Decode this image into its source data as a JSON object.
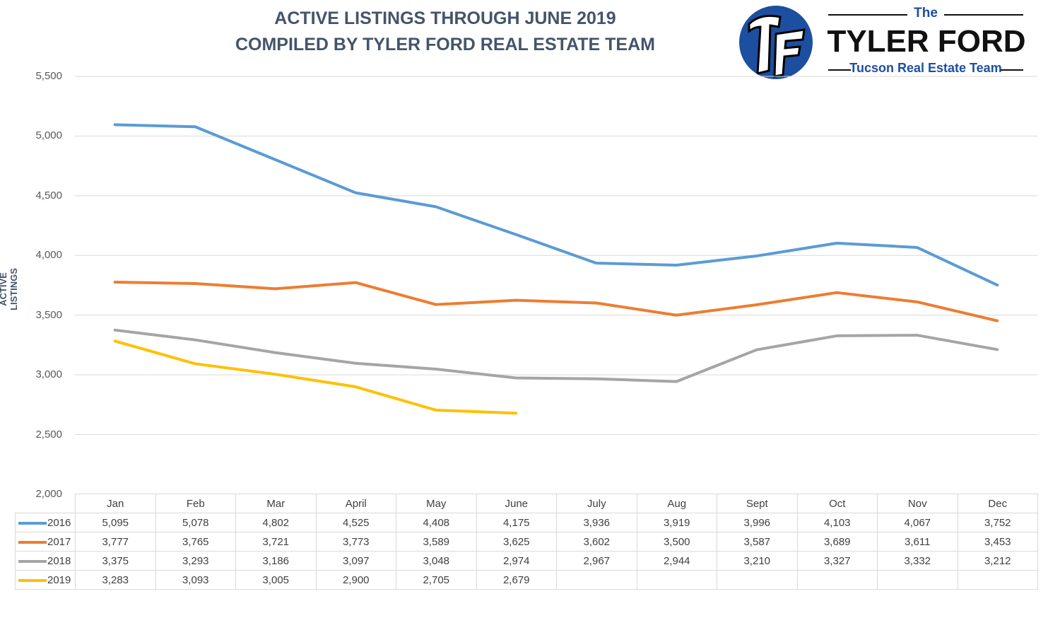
{
  "header": {
    "title_line1": "ACTIVE LISTINGS THROUGH JUNE 2019",
    "title_line2": "COMPILED BY TYLER FORD REAL ESTATE TEAM"
  },
  "logo": {
    "monogram": "TF",
    "the": "The",
    "name": "TYLER FORD",
    "tagline": "Tucson Real Estate Team",
    "circle_color": "#1d4fa0"
  },
  "chart_data": {
    "type": "line",
    "title": "ACTIVE LISTINGS THROUGH JUNE 2019",
    "subtitle": "COMPILED BY TYLER FORD REAL ESTATE TEAM",
    "xlabel": "",
    "ylabel": "ACTIVE LISTINGS",
    "ylim": [
      2000,
      5500
    ],
    "yticks": [
      "5,500",
      "5,000",
      "4,500",
      "4,000",
      "3,500",
      "3,000",
      "2,500",
      "2,000"
    ],
    "ytick_values": [
      5500,
      5000,
      4500,
      4000,
      3500,
      3000,
      2500,
      2000
    ],
    "grid": "horizontal",
    "legend": "data table below chart",
    "categories": [
      "Jan",
      "Feb",
      "Mar",
      "April",
      "May",
      "June",
      "July",
      "Aug",
      "Sept",
      "Oct",
      "Nov",
      "Dec"
    ],
    "series": [
      {
        "name": "2016",
        "color": "#5b9bd5",
        "values": [
          5095,
          5078,
          4802,
          4525,
          4408,
          4175,
          3936,
          3919,
          3996,
          4103,
          4067,
          3752
        ],
        "labels": [
          "5,095",
          "5,078",
          "4,802",
          "4,525",
          "4,408",
          "4,175",
          "3,936",
          "3,919",
          "3,996",
          "4,103",
          "4,067",
          "3,752"
        ]
      },
      {
        "name": "2017",
        "color": "#ed7d31",
        "values": [
          3777,
          3765,
          3721,
          3773,
          3589,
          3625,
          3602,
          3500,
          3587,
          3689,
          3611,
          3453
        ],
        "labels": [
          "3,777",
          "3,765",
          "3,721",
          "3,773",
          "3,589",
          "3,625",
          "3,602",
          "3,500",
          "3,587",
          "3,689",
          "3,611",
          "3,453"
        ]
      },
      {
        "name": "2018",
        "color": "#a5a5a5",
        "values": [
          3375,
          3293,
          3186,
          3097,
          3048,
          2974,
          2967,
          2944,
          3210,
          3327,
          3332,
          3212
        ],
        "labels": [
          "3,375",
          "3,293",
          "3,186",
          "3,097",
          "3,048",
          "2,974",
          "2,967",
          "2,944",
          "3,210",
          "3,327",
          "3,332",
          "3,212"
        ]
      },
      {
        "name": "2019",
        "color": "#ffc000",
        "values": [
          3283,
          3093,
          3005,
          2900,
          2705,
          2679,
          null,
          null,
          null,
          null,
          null,
          null
        ],
        "labels": [
          "3,283",
          "3,093",
          "3,005",
          "2,900",
          "2,705",
          "2,679",
          "",
          "",
          "",
          "",
          "",
          ""
        ]
      }
    ]
  }
}
